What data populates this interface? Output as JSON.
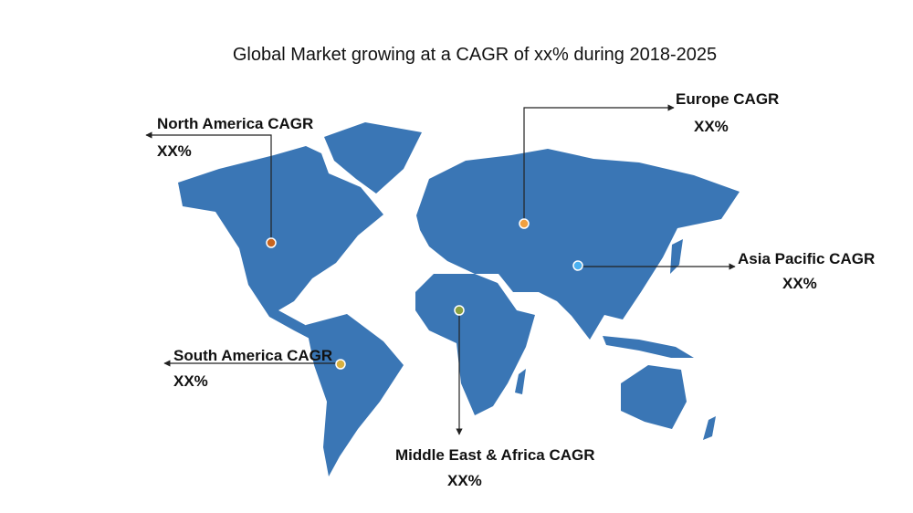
{
  "title": "Global Market growing at a CAGR of xx% during 2018-2025",
  "regions": [
    {
      "label": "North America CAGR",
      "value": "XX%"
    },
    {
      "label": "Europe CAGR",
      "value": "XX%"
    },
    {
      "label": "Asia Pacific CAGR",
      "value": "XX%"
    },
    {
      "label": "South America CAGR",
      "value": "XX%"
    },
    {
      "label": "Middle East & Africa CAGR",
      "value": "XX%"
    }
  ]
}
